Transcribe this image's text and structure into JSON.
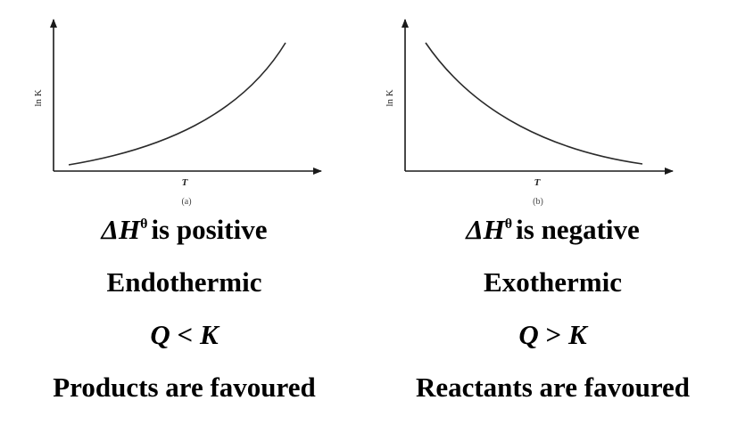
{
  "panels": [
    {
      "id": "a",
      "y_axis_label": "ln K",
      "x_axis_label": "T",
      "sublabel": "(a)",
      "curve": "increasing",
      "delta_h_symbol": "ΔH",
      "delta_h_superscript": "θ",
      "delta_h_text": "is positive",
      "reaction_type": "Endothermic",
      "q_left": "Q",
      "q_op": "<",
      "q_right": "K",
      "favoured": "Products are favoured"
    },
    {
      "id": "b",
      "y_axis_label": "ln K",
      "x_axis_label": "T",
      "sublabel": "(b)",
      "curve": "decreasing",
      "delta_h_symbol": "ΔH",
      "delta_h_superscript": "θ",
      "delta_h_text": "is negative",
      "reaction_type": "Exothermic",
      "q_left": "Q",
      "q_op": ">",
      "q_right": "K",
      "favoured": "Reactants are favoured"
    }
  ],
  "colors": {
    "axis": "#1a1a1a",
    "curve": "#2a2a2a",
    "text": "#000000"
  }
}
